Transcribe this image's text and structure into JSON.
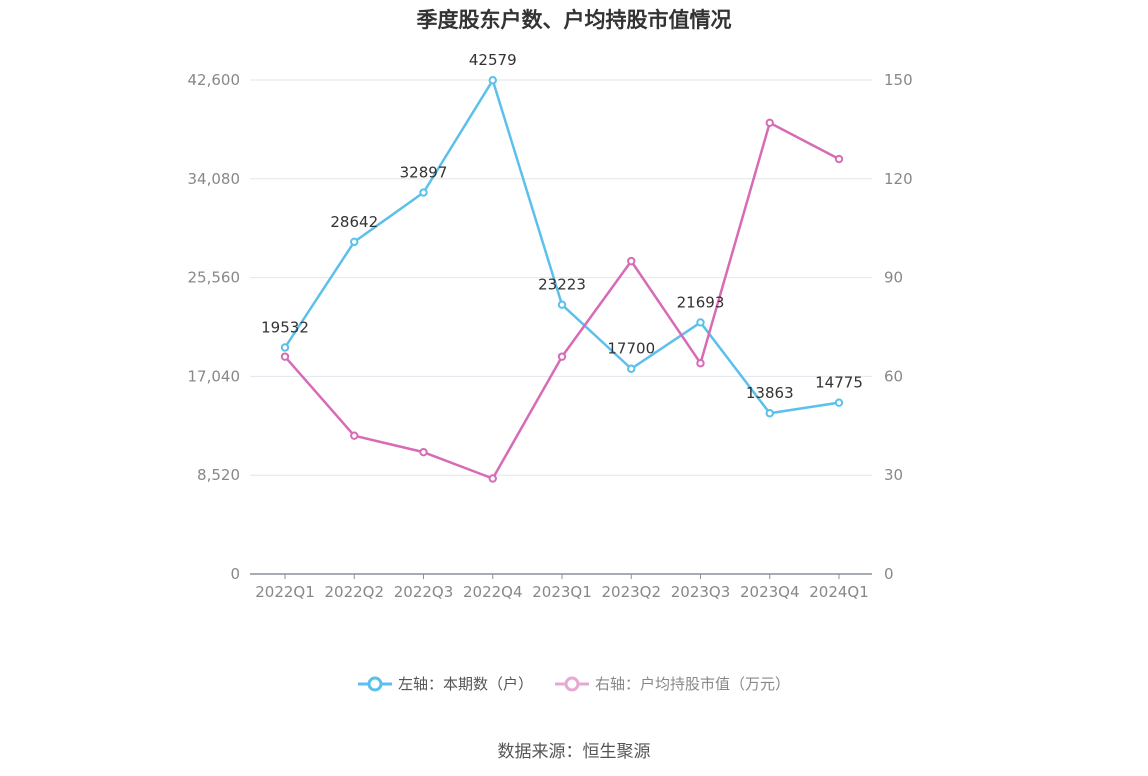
{
  "chart_data": {
    "type": "line",
    "title": "季度股东户数、户均持股市值情况",
    "categories": [
      "2022Q1",
      "2022Q2",
      "2022Q3",
      "2022Q4",
      "2023Q1",
      "2023Q2",
      "2023Q3",
      "2023Q4",
      "2024Q1"
    ],
    "series": [
      {
        "name": "左轴：本期数（户）",
        "axis": "left",
        "color": "#5bc0eb",
        "values": [
          19532,
          28642,
          32897,
          42579,
          23223,
          17700,
          21693,
          13863,
          14775
        ],
        "data_labels": [
          "19532",
          "28642",
          "32897",
          "42579",
          "23223",
          "17700",
          "21693",
          "13863",
          "14775"
        ]
      },
      {
        "name": "右轴：户均持股市值（万元）",
        "axis": "right",
        "color": "#d76bb6",
        "values": [
          66,
          42,
          37,
          29,
          66,
          95,
          64,
          137,
          126
        ]
      }
    ],
    "left_axis": {
      "ylim": [
        0,
        42600
      ],
      "ticks": [
        0,
        8520,
        17040,
        25560,
        34080,
        42600
      ],
      "tick_labels": [
        "0",
        "8,520",
        "17,040",
        "25,560",
        "34,080",
        "42,600"
      ]
    },
    "right_axis": {
      "ylim": [
        0,
        150
      ],
      "ticks": [
        0,
        30,
        60,
        90,
        120,
        150
      ],
      "tick_labels": [
        "0",
        "30",
        "60",
        "90",
        "120",
        "150"
      ]
    },
    "grid": true,
    "legend_position": "bottom"
  },
  "source_text": "数据来源：恒生聚源"
}
